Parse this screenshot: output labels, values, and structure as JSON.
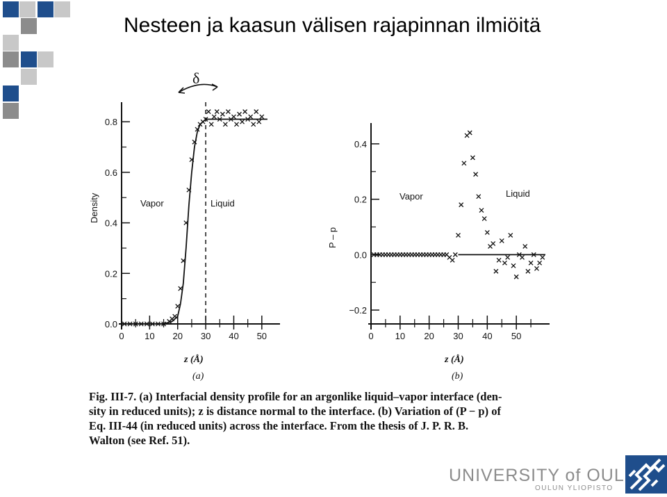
{
  "slide": {
    "title": "Nesteen ja kaasun välisen rajapinnan ilmiöitä",
    "colors": {
      "blue": "#1f4e8c",
      "gray": "#8c8c8c",
      "light_gray": "#c8c8c8"
    }
  },
  "chart_data": [
    {
      "type": "line",
      "panel_label": "(a)",
      "xlabel": "z (Å)",
      "ylabel": "Density",
      "xlim": [
        0,
        55
      ],
      "ylim": [
        0,
        0.85
      ],
      "x_ticks": [
        "0",
        "10",
        "20",
        "30",
        "40",
        "50"
      ],
      "y_ticks": [
        "0.0",
        "0.2",
        "0.4",
        "0.6",
        "0.8"
      ],
      "annotations": [
        "Vapor",
        "Liquid",
        "δ"
      ],
      "series": [
        {
          "style": "line",
          "x": [
            0,
            5,
            10,
            15,
            18,
            20,
            21,
            22,
            23,
            24,
            25,
            26,
            27,
            28,
            29,
            30,
            32,
            35,
            40,
            45,
            50,
            52
          ],
          "y": [
            0.0,
            0.0,
            0.0,
            0.0,
            0.01,
            0.03,
            0.08,
            0.16,
            0.3,
            0.47,
            0.6,
            0.7,
            0.76,
            0.79,
            0.8,
            0.81,
            0.81,
            0.81,
            0.81,
            0.81,
            0.81,
            0.81
          ]
        },
        {
          "style": "markers",
          "x": [
            1,
            3,
            5,
            7,
            9,
            11,
            13,
            15,
            17,
            18,
            19,
            20,
            21,
            22,
            23,
            24,
            25,
            26,
            27,
            28,
            29,
            30,
            31,
            32,
            33,
            34,
            35,
            36,
            37,
            38,
            39,
            40,
            41,
            42,
            43,
            44,
            45,
            46,
            47,
            48,
            49,
            50
          ],
          "y": [
            0.0,
            0.0,
            0.0,
            0.0,
            0.0,
            0.0,
            0.0,
            0.0,
            0.01,
            0.02,
            0.03,
            0.07,
            0.14,
            0.25,
            0.4,
            0.53,
            0.65,
            0.72,
            0.77,
            0.79,
            0.8,
            0.81,
            0.84,
            0.79,
            0.82,
            0.84,
            0.81,
            0.83,
            0.79,
            0.84,
            0.81,
            0.82,
            0.79,
            0.83,
            0.8,
            0.84,
            0.81,
            0.82,
            0.79,
            0.84,
            0.8,
            0.82
          ]
        }
      ],
      "divider_x": 30
    },
    {
      "type": "scatter",
      "panel_label": "(b)",
      "xlabel": "z (Å)",
      "ylabel": "P – p",
      "xlim": [
        0,
        60
      ],
      "ylim": [
        -0.25,
        0.45
      ],
      "x_ticks": [
        "0",
        "10",
        "20",
        "30",
        "40",
        "50"
      ],
      "y_ticks": [
        "0.4",
        "0.2",
        "0.0",
        "−0.2"
      ],
      "annotations": [
        "Vapor",
        "Liquid"
      ],
      "series": [
        {
          "style": "line",
          "x": [
            30,
            60
          ],
          "y": [
            0.0,
            0.0
          ]
        },
        {
          "style": "markers",
          "x": [
            1,
            2,
            3,
            4,
            5,
            6,
            7,
            8,
            9,
            10,
            11,
            12,
            13,
            14,
            15,
            16,
            17,
            18,
            19,
            20,
            21,
            22,
            23,
            24,
            25,
            26,
            27,
            28,
            29,
            30,
            31,
            32,
            33,
            34,
            35,
            36,
            37,
            38,
            39,
            40,
            41,
            42,
            43,
            44,
            45,
            46,
            47,
            48,
            49,
            50,
            51,
            52,
            53,
            54,
            55,
            56,
            57,
            58,
            59
          ],
          "y": [
            0.0,
            0.0,
            0.0,
            0.0,
            0.0,
            0.0,
            0.0,
            0.0,
            0.0,
            0.0,
            0.0,
            0.0,
            0.0,
            0.0,
            0.0,
            0.0,
            0.0,
            0.0,
            0.0,
            0.0,
            0.0,
            0.0,
            0.0,
            0.0,
            0.0,
            0.0,
            -0.01,
            -0.02,
            0.0,
            0.07,
            0.18,
            0.33,
            0.43,
            0.44,
            0.35,
            0.29,
            0.21,
            0.16,
            0.13,
            0.08,
            0.03,
            0.04,
            -0.06,
            -0.02,
            0.05,
            -0.03,
            -0.01,
            0.07,
            -0.04,
            -0.08,
            0.0,
            -0.01,
            0.03,
            -0.06,
            -0.03,
            0.0,
            -0.05,
            -0.03,
            -0.01
          ]
        }
      ]
    }
  ],
  "caption": {
    "lines": [
      "Fig. III-7.  (a) Interfacial density profile for an argonlike liquid–vapor interface (den-",
      "sity in reduced units); z is distance normal to the interface. (b) Variation of (P − p) of",
      "Eq. III-44 (in reduced units) across the interface. From the thesis of J. P. R. B.",
      "Walton (see Ref. 51)."
    ]
  },
  "footer": {
    "university": "UNIVERSITY of OULU",
    "university_sub": "OULUN YLIOPISTO"
  }
}
